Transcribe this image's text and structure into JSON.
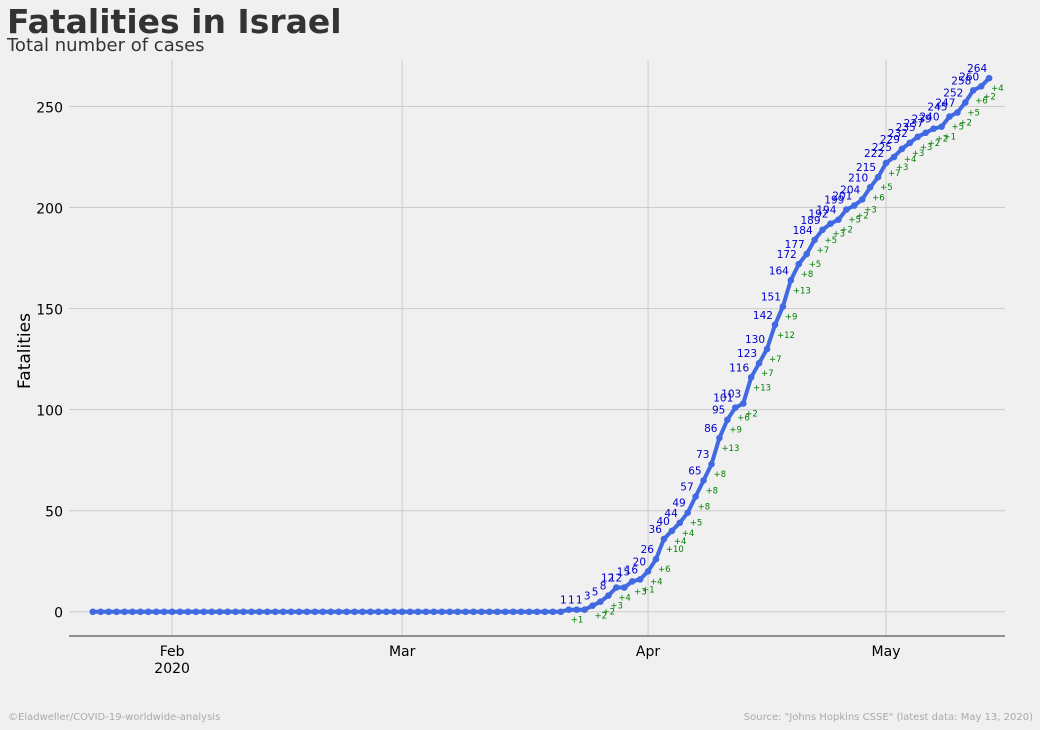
{
  "header": {
    "title": "Fatalities in Israel",
    "subtitle": "Total number of cases"
  },
  "footer": {
    "credit": "©Eladweller/COVID-19-worldwide-analysis",
    "source": "Source: \"Johns Hopkins CSSE\" (latest data: May 13, 2020)"
  },
  "colors": {
    "background": "#f0f0f0",
    "grid": "#cbcbcb",
    "line": "#4169e1",
    "value_label": "#0000cd",
    "delta_label": "#008000",
    "text": "#333333"
  },
  "chart_data": {
    "type": "line",
    "title": "Fatalities in Israel",
    "subtitle": "Total number of cases",
    "xlabel": "",
    "ylabel": "Fatalities",
    "x_start": "2020-01-22",
    "x_end": "2020-05-13",
    "xlim": [
      "2020-01-19",
      "2020-05-16"
    ],
    "ylim": [
      -12,
      273
    ],
    "yticks": [
      0,
      50,
      100,
      150,
      200,
      250
    ],
    "xticks": [
      {
        "date": "2020-02-01",
        "label": "Feb",
        "sublabel": "2020"
      },
      {
        "date": "2020-03-01",
        "label": "Mar",
        "sublabel": ""
      },
      {
        "date": "2020-04-01",
        "label": "Apr",
        "sublabel": ""
      },
      {
        "date": "2020-05-01",
        "label": "May",
        "sublabel": ""
      }
    ],
    "grid": true,
    "values": [
      0,
      0,
      0,
      0,
      0,
      0,
      0,
      0,
      0,
      0,
      0,
      0,
      0,
      0,
      0,
      0,
      0,
      0,
      0,
      0,
      0,
      0,
      0,
      0,
      0,
      0,
      0,
      0,
      0,
      0,
      0,
      0,
      0,
      0,
      0,
      0,
      0,
      0,
      0,
      0,
      0,
      0,
      0,
      0,
      0,
      0,
      0,
      0,
      0,
      0,
      0,
      0,
      0,
      0,
      0,
      0,
      0,
      0,
      0,
      0,
      1,
      1,
      1,
      3,
      5,
      8,
      12,
      12,
      15,
      16,
      20,
      26,
      36,
      40,
      44,
      49,
      57,
      65,
      73,
      86,
      95,
      101,
      103,
      116,
      123,
      130,
      142,
      151,
      164,
      172,
      177,
      184,
      189,
      192,
      194,
      199,
      201,
      204,
      210,
      215,
      222,
      225,
      229,
      232,
      235,
      237,
      239,
      240,
      245,
      247,
      252,
      258,
      260,
      264
    ]
  }
}
